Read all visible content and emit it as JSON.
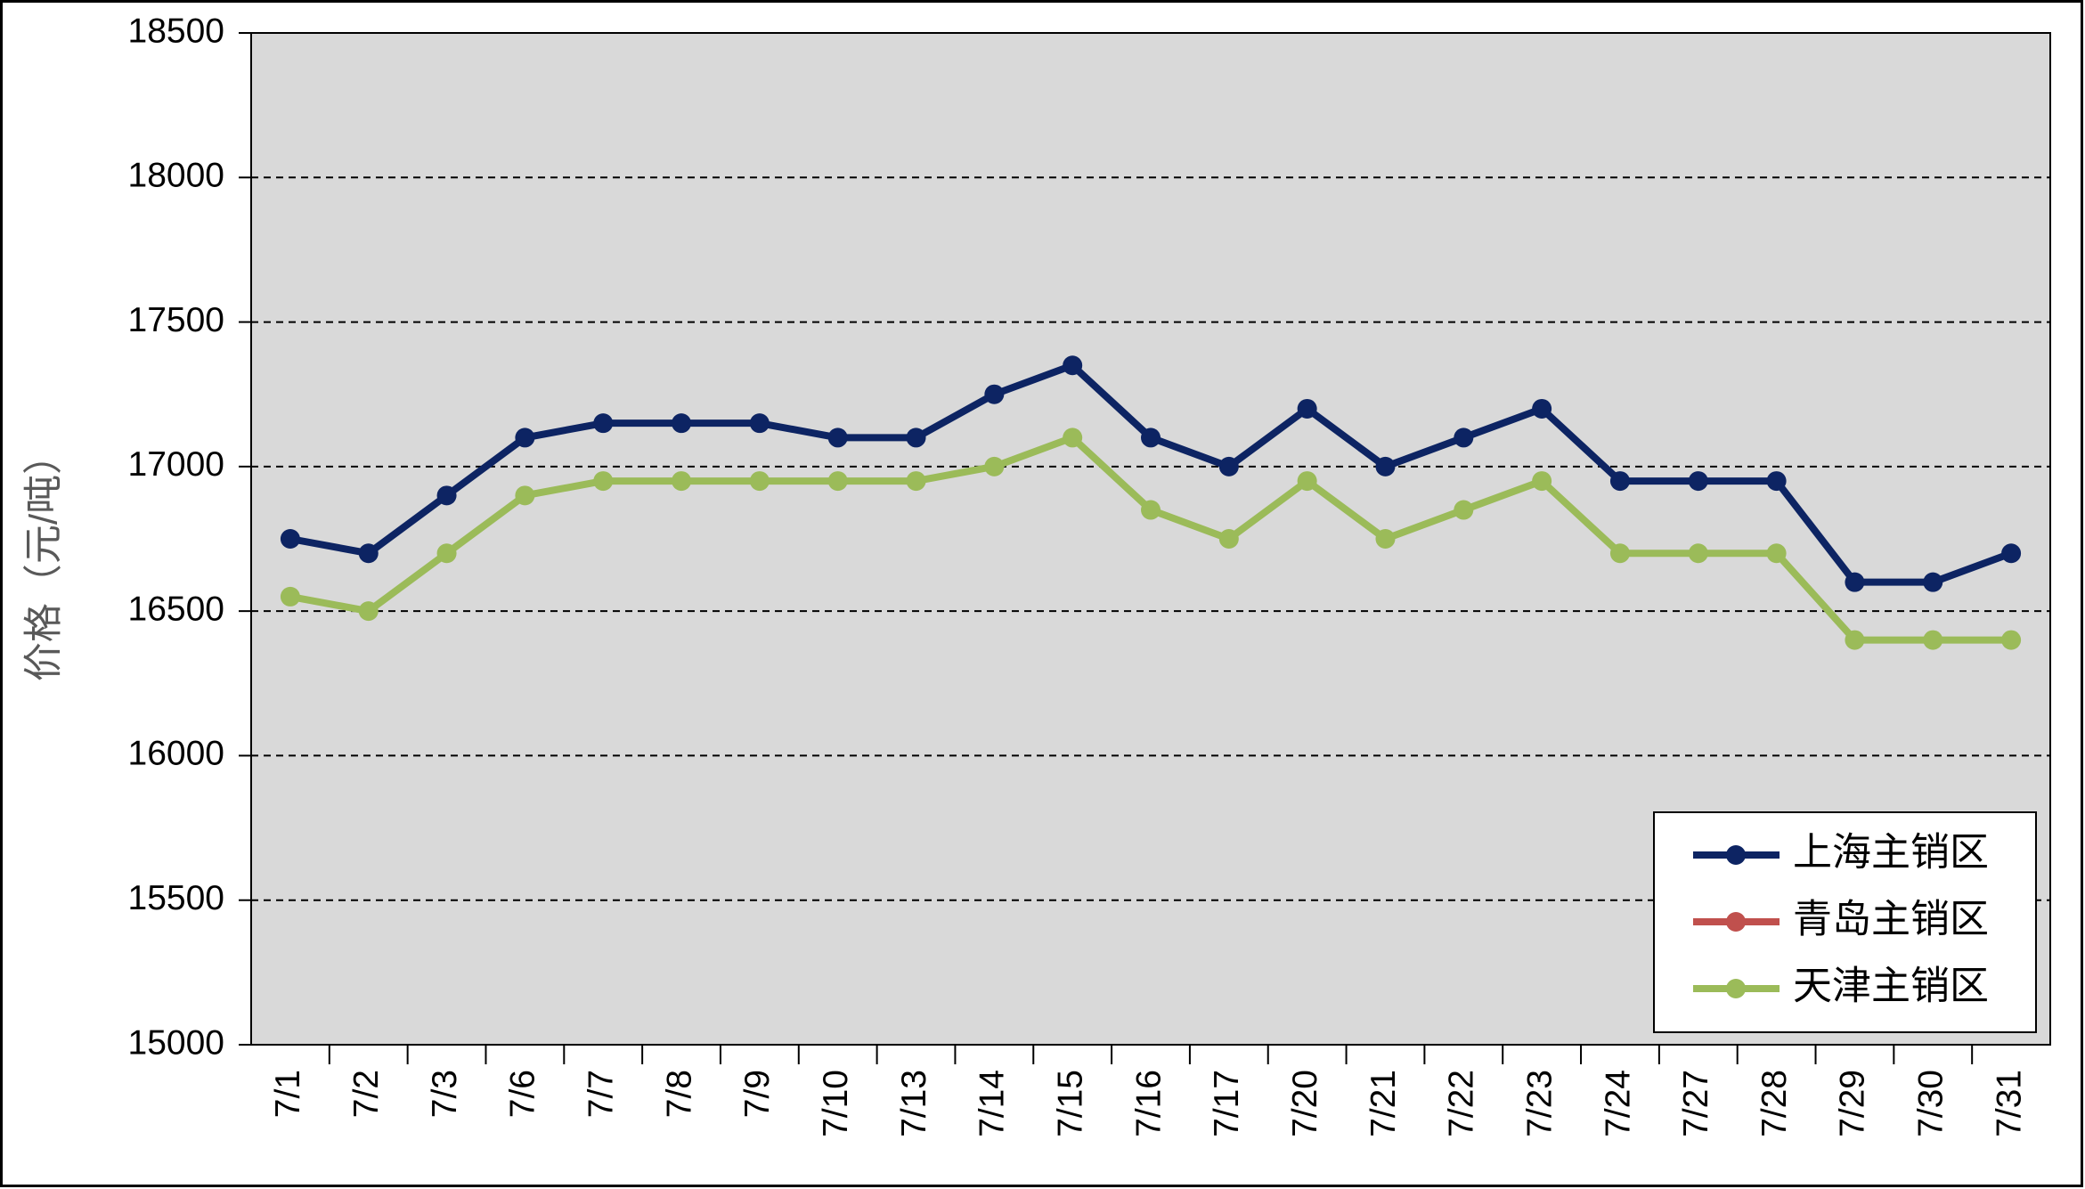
{
  "chart_data": {
    "type": "line",
    "ylabel": "价格（元/吨）",
    "categories": [
      "7/1",
      "7/2",
      "7/3",
      "7/6",
      "7/7",
      "7/8",
      "7/9",
      "7/10",
      "7/13",
      "7/14",
      "7/15",
      "7/16",
      "7/17",
      "7/20",
      "7/21",
      "7/22",
      "7/23",
      "7/24",
      "7/27",
      "7/28",
      "7/29",
      "7/30",
      "7/31"
    ],
    "series": [
      {
        "name": "上海主销区",
        "color": "#0d2463",
        "values": [
          16750,
          16700,
          16900,
          17100,
          17150,
          17150,
          17150,
          17100,
          17100,
          17250,
          17350,
          17100,
          17000,
          17200,
          17000,
          17100,
          17200,
          16950,
          16950,
          16950,
          16600,
          16600,
          16700
        ]
      },
      {
        "name": "青岛主销区",
        "color": "#c0504d",
        "values": [
          null,
          null,
          null,
          null,
          null,
          null,
          null,
          null,
          null,
          null,
          null,
          null,
          null,
          null,
          null,
          null,
          null,
          null,
          null,
          null,
          null,
          null,
          null
        ]
      },
      {
        "name": "天津主销区",
        "color": "#9bbb59",
        "values": [
          16550,
          16500,
          16700,
          16900,
          16950,
          16950,
          16950,
          16950,
          16950,
          17000,
          17100,
          16850,
          16750,
          16950,
          16750,
          16850,
          16950,
          16700,
          16700,
          16700,
          16400,
          16400,
          16400
        ]
      }
    ],
    "ylim": [
      15000,
      18500
    ],
    "yticks": [
      15000,
      15500,
      16000,
      16500,
      17000,
      17500,
      18000,
      18500
    ],
    "grid": true,
    "legend": "lower right"
  }
}
